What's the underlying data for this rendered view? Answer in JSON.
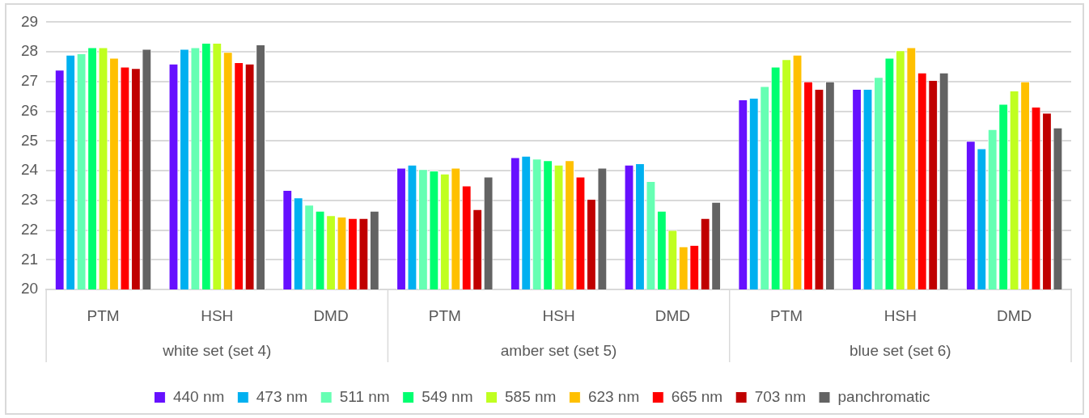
{
  "chart_data": {
    "type": "bar",
    "categories": [
      "PTM",
      "HSH",
      "DMD",
      "PTM",
      "HSH",
      "DMD",
      "PTM",
      "HSH",
      "DMD"
    ],
    "annotations": [
      "white set (set 4)",
      "amber set (set 5)",
      "blue set (set 6)"
    ],
    "series": [
      {
        "name": "440 nm",
        "color": "#6610ff",
        "values": [
          27.4,
          27.6,
          23.35,
          24.1,
          24.45,
          24.2,
          26.4,
          26.75,
          25.0
        ]
      },
      {
        "name": "473 nm",
        "color": "#00b0f0",
        "values": [
          27.9,
          28.1,
          23.1,
          24.2,
          24.5,
          24.25,
          26.45,
          26.75,
          24.75
        ]
      },
      {
        "name": "511 nm",
        "color": "#66ffb3",
        "values": [
          27.95,
          28.15,
          22.85,
          24.05,
          24.4,
          23.65,
          26.85,
          27.15,
          25.4
        ]
      },
      {
        "name": "549 nm",
        "color": "#00ff70",
        "values": [
          28.15,
          28.3,
          22.65,
          24.0,
          24.35,
          22.65,
          27.5,
          27.8,
          26.25
        ]
      },
      {
        "name": "585 nm",
        "color": "#c0ff20",
        "values": [
          28.15,
          28.3,
          22.5,
          23.9,
          24.2,
          22.0,
          27.75,
          28.05,
          26.7
        ]
      },
      {
        "name": "623 nm",
        "color": "#ffc000",
        "values": [
          27.8,
          28.0,
          22.45,
          24.1,
          24.35,
          21.45,
          27.9,
          28.15,
          27.0
        ]
      },
      {
        "name": "665 nm",
        "color": "#ff0000",
        "values": [
          27.5,
          27.65,
          22.4,
          23.5,
          23.8,
          21.5,
          27.0,
          27.3,
          26.15
        ]
      },
      {
        "name": "703 nm",
        "color": "#c00000",
        "values": [
          27.45,
          27.6,
          22.4,
          22.7,
          23.05,
          22.4,
          26.75,
          27.05,
          25.95
        ]
      },
      {
        "name": "panchromatic",
        "color": "#636363",
        "values": [
          28.1,
          28.25,
          22.65,
          23.8,
          24.1,
          22.95,
          27.0,
          27.3,
          25.45
        ]
      }
    ],
    "ylim": [
      20,
      29
    ],
    "yticks": [
      20,
      21,
      22,
      23,
      24,
      25,
      26,
      27,
      28,
      29
    ],
    "grid": "y",
    "legend": "bottom"
  }
}
